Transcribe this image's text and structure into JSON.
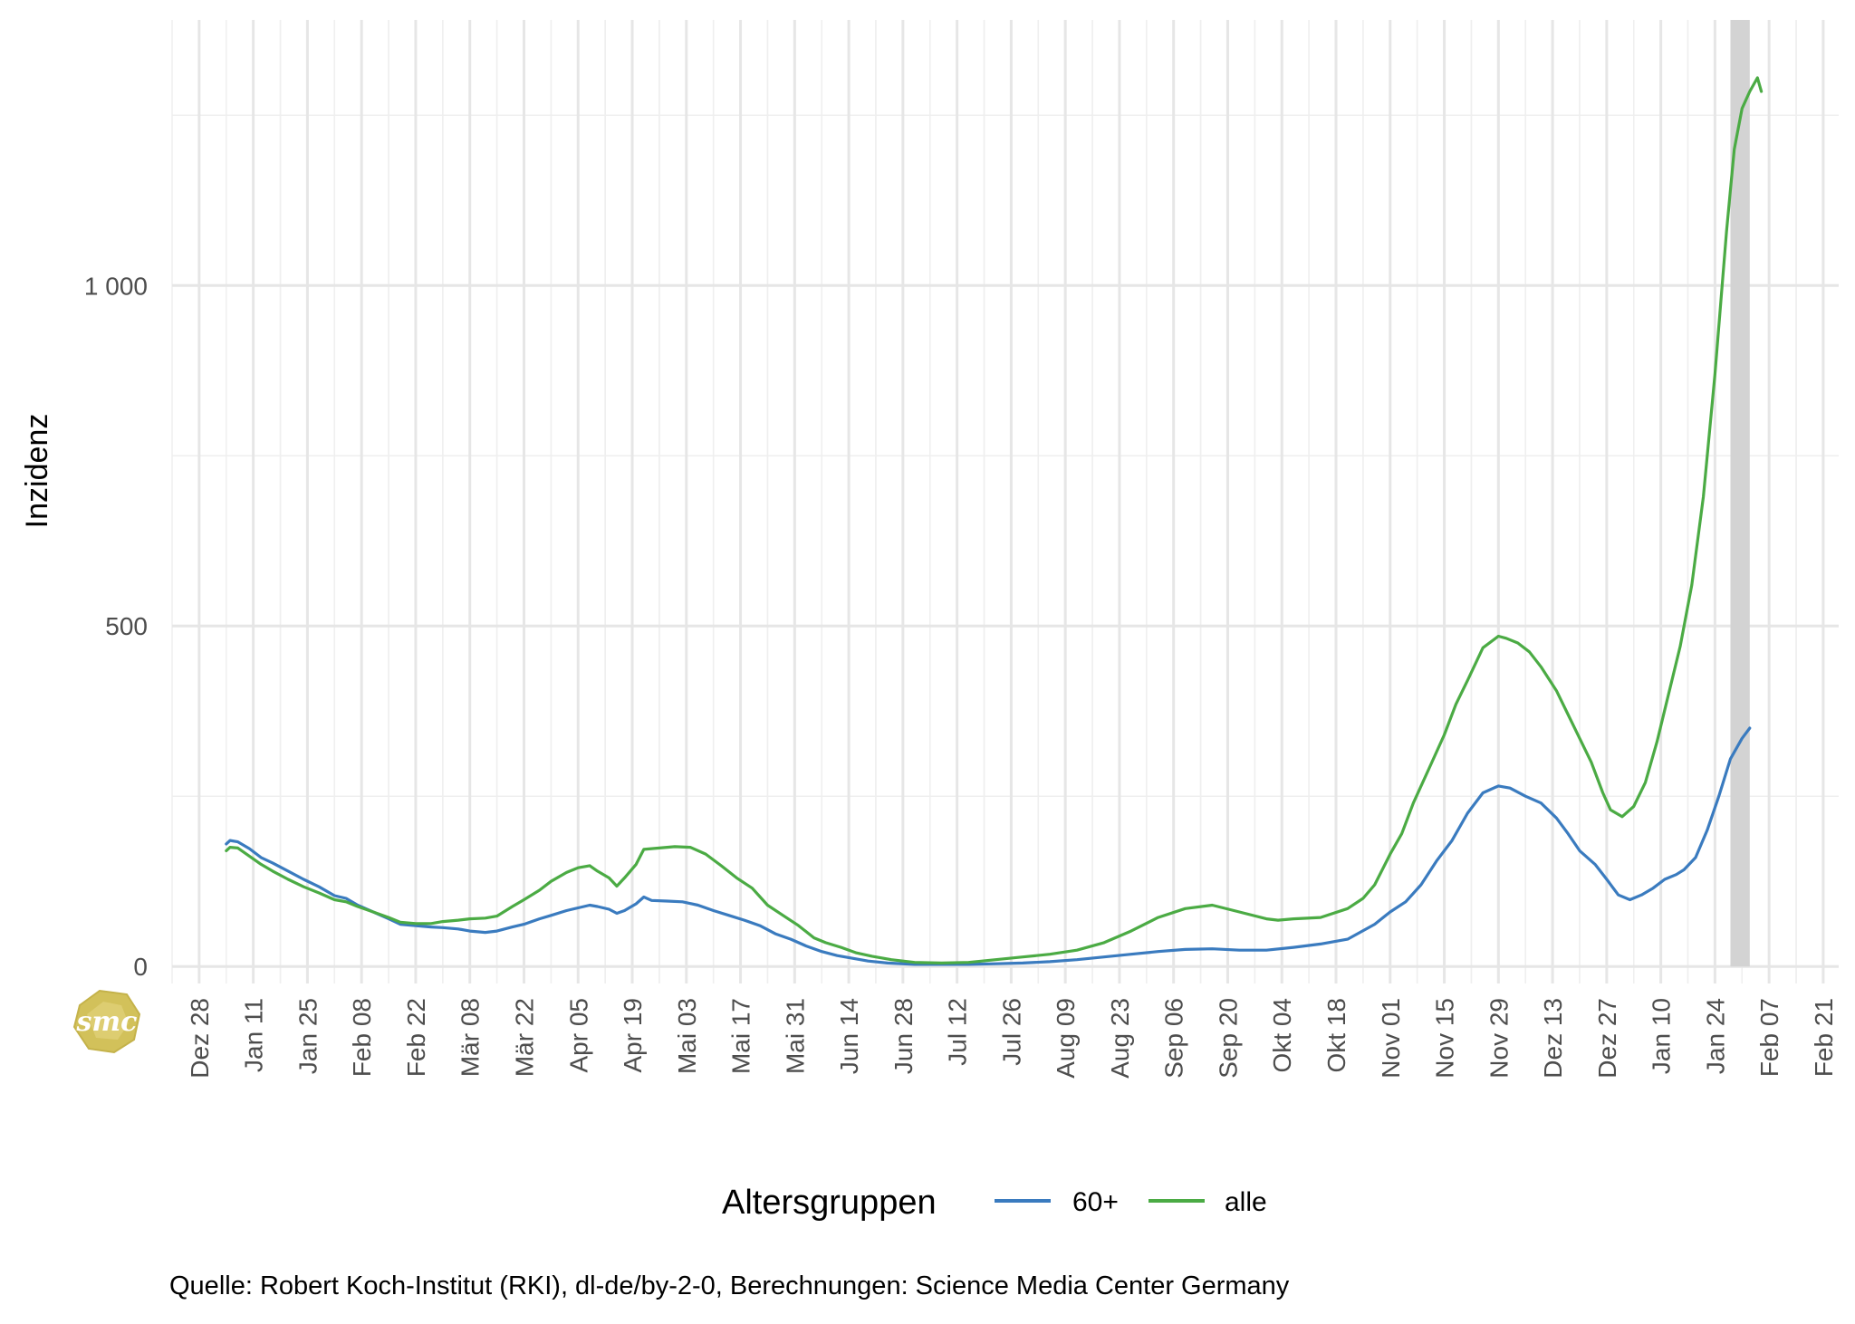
{
  "chart_data": {
    "type": "line",
    "ylabel": "Inzidenz",
    "ylim": [
      -25,
      1390
    ],
    "y_ticks": [
      0,
      500,
      1000
    ],
    "y_tick_labels": [
      "0",
      "500",
      "1 000"
    ],
    "x_tick_dates": [
      "2020-12-28",
      "2021-01-11",
      "2021-01-25",
      "2021-02-08",
      "2021-02-22",
      "2021-03-08",
      "2021-03-22",
      "2021-04-05",
      "2021-04-19",
      "2021-05-03",
      "2021-05-17",
      "2021-05-31",
      "2021-06-14",
      "2021-06-28",
      "2021-07-12",
      "2021-07-26",
      "2021-08-09",
      "2021-08-23",
      "2021-09-06",
      "2021-09-20",
      "2021-10-04",
      "2021-10-18",
      "2021-11-01",
      "2021-11-15",
      "2021-11-29",
      "2021-12-13",
      "2021-12-27",
      "2022-01-10",
      "2022-01-24",
      "2022-02-07",
      "2022-02-21"
    ],
    "x_tick_labels": [
      "Dez 28",
      "Jan 11",
      "Jan 25",
      "Feb 08",
      "Feb 22",
      "Mär 08",
      "Mär 22",
      "Apr 05",
      "Apr 19",
      "Mai 03",
      "Mai 17",
      "Mai 31",
      "Jun 14",
      "Jun 28",
      "Jul 12",
      "Jul 26",
      "Aug 09",
      "Aug 23",
      "Sep 06",
      "Sep 20",
      "Okt 04",
      "Okt 18",
      "Nov 01",
      "Nov 15",
      "Nov 29",
      "Dez 13",
      "Dez 27",
      "Jan 10",
      "Jan 24",
      "Feb 07",
      "Feb 21"
    ],
    "xlim": [
      "2020-12-21",
      "2022-02-25"
    ],
    "highlight_band": [
      "2022-01-28",
      "2022-02-02"
    ],
    "grid": true,
    "legend": {
      "title": "Altersgruppen",
      "position": "bottom"
    },
    "series": [
      {
        "name": "60+",
        "color": "#3a7bbf",
        "points": [
          [
            "2021-01-04",
            180
          ],
          [
            "2021-01-05",
            185
          ],
          [
            "2021-01-07",
            183
          ],
          [
            "2021-01-10",
            173
          ],
          [
            "2021-01-13",
            160
          ],
          [
            "2021-01-16",
            152
          ],
          [
            "2021-01-20",
            140
          ],
          [
            "2021-01-24",
            128
          ],
          [
            "2021-01-28",
            117
          ],
          [
            "2021-02-01",
            104
          ],
          [
            "2021-02-04",
            100
          ],
          [
            "2021-02-07",
            90
          ],
          [
            "2021-02-11",
            80
          ],
          [
            "2021-02-15",
            70
          ],
          [
            "2021-02-18",
            62
          ],
          [
            "2021-02-22",
            60
          ],
          [
            "2021-02-26",
            58
          ],
          [
            "2021-03-01",
            57
          ],
          [
            "2021-03-05",
            55
          ],
          [
            "2021-03-08",
            52
          ],
          [
            "2021-03-12",
            50
          ],
          [
            "2021-03-15",
            52
          ],
          [
            "2021-03-19",
            58
          ],
          [
            "2021-03-22",
            62
          ],
          [
            "2021-03-26",
            70
          ],
          [
            "2021-03-29",
            75
          ],
          [
            "2021-04-02",
            82
          ],
          [
            "2021-04-05",
            86
          ],
          [
            "2021-04-08",
            90
          ],
          [
            "2021-04-10",
            88
          ],
          [
            "2021-04-13",
            84
          ],
          [
            "2021-04-15",
            78
          ],
          [
            "2021-04-17",
            82
          ],
          [
            "2021-04-20",
            92
          ],
          [
            "2021-04-22",
            102
          ],
          [
            "2021-04-24",
            97
          ],
          [
            "2021-04-28",
            96
          ],
          [
            "2021-05-02",
            95
          ],
          [
            "2021-05-06",
            90
          ],
          [
            "2021-05-10",
            82
          ],
          [
            "2021-05-14",
            75
          ],
          [
            "2021-05-18",
            68
          ],
          [
            "2021-05-22",
            60
          ],
          [
            "2021-05-26",
            48
          ],
          [
            "2021-05-30",
            40
          ],
          [
            "2021-06-03",
            30
          ],
          [
            "2021-06-07",
            22
          ],
          [
            "2021-06-11",
            16
          ],
          [
            "2021-06-15",
            12
          ],
          [
            "2021-06-19",
            8
          ],
          [
            "2021-06-24",
            5
          ],
          [
            "2021-07-01",
            3
          ],
          [
            "2021-07-08",
            3
          ],
          [
            "2021-07-15",
            3
          ],
          [
            "2021-07-22",
            4
          ],
          [
            "2021-07-29",
            5
          ],
          [
            "2021-08-05",
            7
          ],
          [
            "2021-08-12",
            10
          ],
          [
            "2021-08-19",
            14
          ],
          [
            "2021-08-26",
            18
          ],
          [
            "2021-09-02",
            22
          ],
          [
            "2021-09-09",
            25
          ],
          [
            "2021-09-16",
            26
          ],
          [
            "2021-09-23",
            24
          ],
          [
            "2021-09-30",
            24
          ],
          [
            "2021-10-07",
            28
          ],
          [
            "2021-10-14",
            33
          ],
          [
            "2021-10-21",
            40
          ],
          [
            "2021-10-28",
            62
          ],
          [
            "2021-11-01",
            80
          ],
          [
            "2021-11-05",
            95
          ],
          [
            "2021-11-09",
            120
          ],
          [
            "2021-11-13",
            155
          ],
          [
            "2021-11-17",
            185
          ],
          [
            "2021-11-21",
            225
          ],
          [
            "2021-11-25",
            255
          ],
          [
            "2021-11-29",
            265
          ],
          [
            "2021-12-02",
            262
          ],
          [
            "2021-12-06",
            250
          ],
          [
            "2021-12-10",
            240
          ],
          [
            "2021-12-14",
            218
          ],
          [
            "2021-12-17",
            195
          ],
          [
            "2021-12-20",
            170
          ],
          [
            "2021-12-24",
            150
          ],
          [
            "2021-12-27",
            128
          ],
          [
            "2021-12-30",
            105
          ],
          [
            "2022-01-02",
            98
          ],
          [
            "2022-01-05",
            105
          ],
          [
            "2022-01-08",
            115
          ],
          [
            "2022-01-11",
            128
          ],
          [
            "2022-01-14",
            135
          ],
          [
            "2022-01-16",
            142
          ],
          [
            "2022-01-19",
            160
          ],
          [
            "2022-01-22",
            200
          ],
          [
            "2022-01-25",
            250
          ],
          [
            "2022-01-28",
            305
          ],
          [
            "2022-01-31",
            335
          ],
          [
            "2022-02-02",
            350
          ]
        ]
      },
      {
        "name": "alle",
        "color": "#4bab44",
        "points": [
          [
            "2021-01-04",
            170
          ],
          [
            "2021-01-05",
            175
          ],
          [
            "2021-01-07",
            174
          ],
          [
            "2021-01-10",
            162
          ],
          [
            "2021-01-13",
            150
          ],
          [
            "2021-01-16",
            140
          ],
          [
            "2021-01-20",
            128
          ],
          [
            "2021-01-24",
            117
          ],
          [
            "2021-01-28",
            108
          ],
          [
            "2021-02-01",
            98
          ],
          [
            "2021-02-04",
            95
          ],
          [
            "2021-02-07",
            88
          ],
          [
            "2021-02-11",
            80
          ],
          [
            "2021-02-15",
            72
          ],
          [
            "2021-02-18",
            65
          ],
          [
            "2021-02-22",
            63
          ],
          [
            "2021-02-26",
            63
          ],
          [
            "2021-03-01",
            66
          ],
          [
            "2021-03-05",
            68
          ],
          [
            "2021-03-08",
            70
          ],
          [
            "2021-03-12",
            71
          ],
          [
            "2021-03-15",
            74
          ],
          [
            "2021-03-19",
            88
          ],
          [
            "2021-03-22",
            98
          ],
          [
            "2021-03-26",
            112
          ],
          [
            "2021-03-29",
            125
          ],
          [
            "2021-04-02",
            138
          ],
          [
            "2021-04-05",
            145
          ],
          [
            "2021-04-08",
            148
          ],
          [
            "2021-04-10",
            140
          ],
          [
            "2021-04-13",
            130
          ],
          [
            "2021-04-15",
            118
          ],
          [
            "2021-04-17",
            130
          ],
          [
            "2021-04-20",
            150
          ],
          [
            "2021-04-22",
            172
          ],
          [
            "2021-04-26",
            174
          ],
          [
            "2021-04-30",
            176
          ],
          [
            "2021-05-04",
            175
          ],
          [
            "2021-05-08",
            165
          ],
          [
            "2021-05-12",
            148
          ],
          [
            "2021-05-16",
            130
          ],
          [
            "2021-05-20",
            115
          ],
          [
            "2021-05-24",
            90
          ],
          [
            "2021-05-28",
            75
          ],
          [
            "2021-06-01",
            60
          ],
          [
            "2021-06-05",
            42
          ],
          [
            "2021-06-08",
            35
          ],
          [
            "2021-06-12",
            28
          ],
          [
            "2021-06-16",
            20
          ],
          [
            "2021-06-20",
            15
          ],
          [
            "2021-06-25",
            10
          ],
          [
            "2021-07-01",
            6
          ],
          [
            "2021-07-08",
            5
          ],
          [
            "2021-07-15",
            6
          ],
          [
            "2021-07-22",
            10
          ],
          [
            "2021-07-29",
            14
          ],
          [
            "2021-08-05",
            18
          ],
          [
            "2021-08-12",
            24
          ],
          [
            "2021-08-19",
            35
          ],
          [
            "2021-08-26",
            52
          ],
          [
            "2021-09-02",
            72
          ],
          [
            "2021-09-09",
            85
          ],
          [
            "2021-09-16",
            90
          ],
          [
            "2021-09-23",
            80
          ],
          [
            "2021-09-30",
            70
          ],
          [
            "2021-10-03",
            68
          ],
          [
            "2021-10-07",
            70
          ],
          [
            "2021-10-14",
            72
          ],
          [
            "2021-10-21",
            85
          ],
          [
            "2021-10-25",
            100
          ],
          [
            "2021-10-28",
            120
          ],
          [
            "2021-11-01",
            165
          ],
          [
            "2021-11-04",
            195
          ],
          [
            "2021-11-07",
            240
          ],
          [
            "2021-11-11",
            290
          ],
          [
            "2021-11-15",
            340
          ],
          [
            "2021-11-18",
            385
          ],
          [
            "2021-11-21",
            420
          ],
          [
            "2021-11-25",
            468
          ],
          [
            "2021-11-29",
            485
          ],
          [
            "2021-12-01",
            482
          ],
          [
            "2021-12-04",
            475
          ],
          [
            "2021-12-07",
            462
          ],
          [
            "2021-12-10",
            440
          ],
          [
            "2021-12-14",
            405
          ],
          [
            "2021-12-17",
            370
          ],
          [
            "2021-12-20",
            335
          ],
          [
            "2021-12-23",
            300
          ],
          [
            "2021-12-26",
            255
          ],
          [
            "2021-12-28",
            230
          ],
          [
            "2021-12-31",
            220
          ],
          [
            "2022-01-03",
            235
          ],
          [
            "2022-01-06",
            270
          ],
          [
            "2022-01-09",
            330
          ],
          [
            "2022-01-12",
            400
          ],
          [
            "2022-01-15",
            470
          ],
          [
            "2022-01-18",
            560
          ],
          [
            "2022-01-21",
            690
          ],
          [
            "2022-01-24",
            870
          ],
          [
            "2022-01-27",
            1080
          ],
          [
            "2022-01-29",
            1200
          ],
          [
            "2022-01-31",
            1260
          ],
          [
            "2022-02-02",
            1285
          ],
          [
            "2022-02-04",
            1305
          ],
          [
            "2022-02-05",
            1285
          ]
        ]
      }
    ]
  },
  "caption": "Quelle: Robert Koch-Institut (RKI), dl-de/by-2-0, Berechnungen: Science Media Center Germany",
  "logo_text": "smc"
}
